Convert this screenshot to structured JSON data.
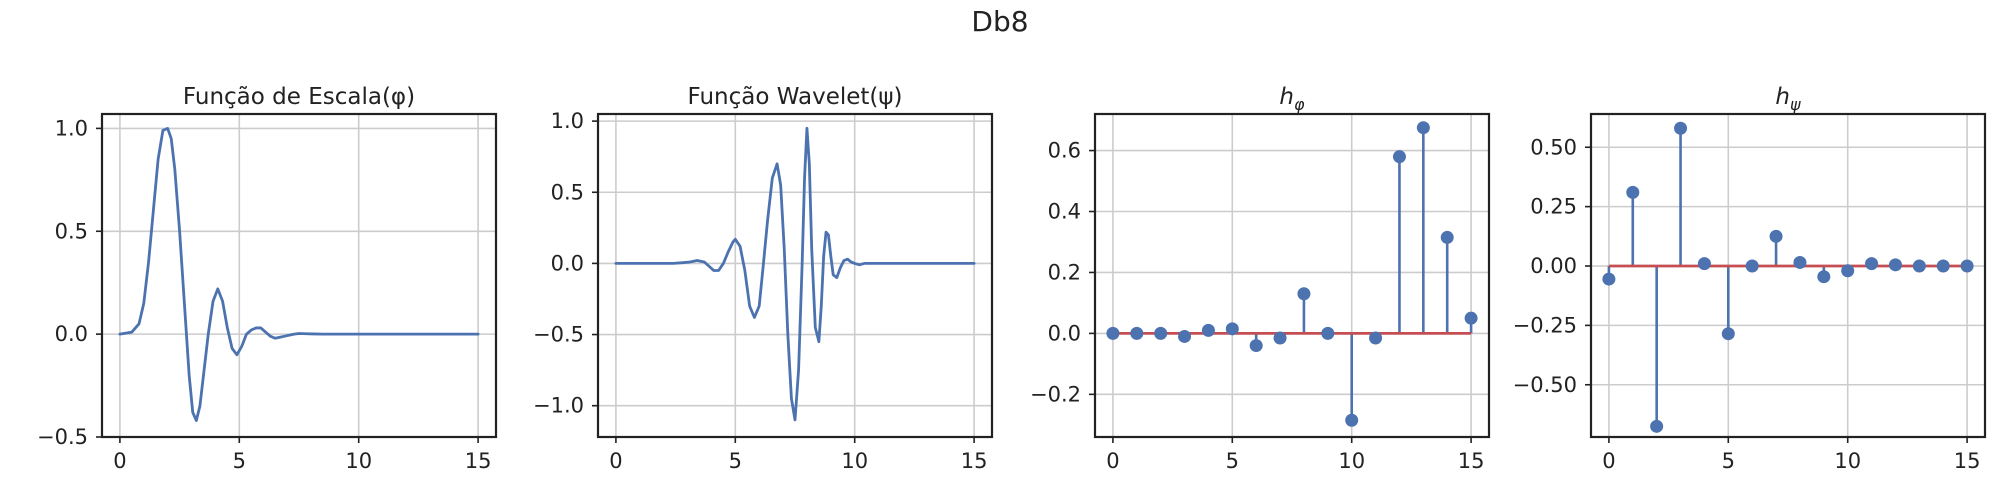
{
  "figure": {
    "suptitle": "Db8"
  },
  "colors": {
    "line": "#4c72b0",
    "baseline": "#c44e52",
    "grid": "#cccccc",
    "axes": "#222222"
  },
  "chart_data": [
    {
      "type": "line",
      "title": "Função de Escala(φ)",
      "xlim": [
        -0.75,
        15.75
      ],
      "ylim": [
        -0.5,
        1.07
      ],
      "xticks": [
        0,
        5,
        10,
        15
      ],
      "yticks": [
        -0.5,
        0.0,
        0.5,
        1.0
      ],
      "xtick_labels": [
        "0",
        "5",
        "10",
        "15"
      ],
      "ytick_labels": [
        "−0.5",
        "0.0",
        "0.5",
        "1.0"
      ],
      "grid": true,
      "series": [
        {
          "x": [
            0,
            0.5,
            0.8,
            1.0,
            1.2,
            1.4,
            1.6,
            1.8,
            2.0,
            2.15,
            2.3,
            2.5,
            2.7,
            2.9,
            3.05,
            3.2,
            3.35,
            3.5,
            3.7,
            3.9,
            4.1,
            4.3,
            4.5,
            4.7,
            4.9,
            5.1,
            5.3,
            5.5,
            5.7,
            5.9,
            6.1,
            6.3,
            6.5,
            6.7,
            6.9,
            7.1,
            7.3,
            7.5,
            7.8,
            8.1,
            8.5,
            9,
            10,
            11,
            12,
            13,
            14,
            15
          ],
          "y": [
            0,
            0.01,
            0.05,
            0.15,
            0.35,
            0.6,
            0.85,
            0.99,
            1.0,
            0.95,
            0.8,
            0.5,
            0.15,
            -0.2,
            -0.38,
            -0.42,
            -0.35,
            -0.2,
            0.0,
            0.16,
            0.22,
            0.16,
            0.03,
            -0.07,
            -0.1,
            -0.06,
            0.0,
            0.02,
            0.03,
            0.03,
            0.01,
            -0.01,
            -0.02,
            -0.015,
            -0.01,
            -0.005,
            0.0,
            0.003,
            0.002,
            0.001,
            0.0,
            0.0,
            0.0,
            0.0,
            0.0,
            0.0,
            0.0,
            0.0
          ]
        }
      ]
    },
    {
      "type": "line",
      "title": "Função Wavelet(ψ)",
      "xlim": [
        -0.75,
        15.75
      ],
      "ylim": [
        -1.22,
        1.05
      ],
      "xticks": [
        0,
        5,
        10,
        15
      ],
      "yticks": [
        -1.0,
        -0.5,
        0.0,
        0.5,
        1.0
      ],
      "xtick_labels": [
        "0",
        "5",
        "10",
        "15"
      ],
      "ytick_labels": [
        "−1.0",
        "−0.5",
        "0.0",
        "0.5",
        "1.0"
      ],
      "grid": true,
      "series": [
        {
          "x": [
            0,
            1,
            1.8,
            2.4,
            2.8,
            3.1,
            3.4,
            3.7,
            3.9,
            4.1,
            4.3,
            4.5,
            4.7,
            4.9,
            5.0,
            5.2,
            5.4,
            5.6,
            5.8,
            6.0,
            6.15,
            6.35,
            6.55,
            6.75,
            6.9,
            7.05,
            7.2,
            7.35,
            7.5,
            7.65,
            7.8,
            7.9,
            8.0,
            8.1,
            8.2,
            8.35,
            8.5,
            8.6,
            8.7,
            8.8,
            8.9,
            9.0,
            9.1,
            9.25,
            9.4,
            9.55,
            9.7,
            9.85,
            10.0,
            10.2,
            10.4,
            10.7,
            11,
            12,
            13,
            14,
            15
          ],
          "y": [
            0,
            0,
            0.0,
            0.0,
            0.005,
            0.01,
            0.02,
            0.01,
            -0.02,
            -0.05,
            -0.05,
            0.0,
            0.08,
            0.15,
            0.17,
            0.12,
            -0.05,
            -0.3,
            -0.38,
            -0.3,
            -0.05,
            0.3,
            0.6,
            0.7,
            0.55,
            0.1,
            -0.5,
            -0.95,
            -1.1,
            -0.75,
            0.0,
            0.6,
            0.95,
            0.7,
            0.1,
            -0.45,
            -0.55,
            -0.3,
            0.05,
            0.22,
            0.2,
            0.05,
            -0.08,
            -0.1,
            -0.03,
            0.02,
            0.03,
            0.01,
            0.0,
            -0.01,
            0.0,
            0.0,
            0.0,
            0.0,
            0.0,
            0.0,
            0.0
          ]
        }
      ]
    },
    {
      "type": "stem",
      "title_base": "h",
      "title_sub": "φ",
      "xlim": [
        -0.75,
        15.75
      ],
      "ylim": [
        -0.34,
        0.72
      ],
      "xticks": [
        0,
        5,
        10,
        15
      ],
      "yticks": [
        -0.2,
        0.0,
        0.2,
        0.4,
        0.6
      ],
      "xtick_labels": [
        "0",
        "5",
        "10",
        "15"
      ],
      "ytick_labels": [
        "−0.2",
        "0.0",
        "0.2",
        "0.4",
        "0.6"
      ],
      "grid": true,
      "x": [
        0,
        1,
        2,
        3,
        4,
        5,
        6,
        7,
        8,
        9,
        10,
        11,
        12,
        13,
        14,
        15
      ],
      "values": [
        0.0,
        0.0,
        0.0,
        -0.01,
        0.01,
        0.015,
        -0.04,
        -0.015,
        0.13,
        0.0,
        -0.285,
        -0.015,
        0.58,
        0.675,
        0.315,
        0.05
      ]
    },
    {
      "type": "stem",
      "title_base": "h",
      "title_sub": "ψ",
      "xlim": [
        -0.75,
        15.75
      ],
      "ylim": [
        -0.72,
        0.64
      ],
      "xticks": [
        0,
        5,
        10,
        15
      ],
      "yticks": [
        -0.5,
        -0.25,
        0.0,
        0.25,
        0.5
      ],
      "xtick_labels": [
        "0",
        "5",
        "10",
        "15"
      ],
      "ytick_labels": [
        "−0.50",
        "−0.25",
        "0.00",
        "0.25",
        "0.50"
      ],
      "grid": true,
      "x": [
        0,
        1,
        2,
        3,
        4,
        5,
        6,
        7,
        8,
        9,
        10,
        11,
        12,
        13,
        14,
        15
      ],
      "values": [
        -0.055,
        0.31,
        -0.675,
        0.58,
        0.01,
        -0.285,
        0.0,
        0.125,
        0.015,
        -0.045,
        -0.02,
        0.01,
        0.005,
        0.0,
        0.0,
        0.0
      ]
    }
  ]
}
